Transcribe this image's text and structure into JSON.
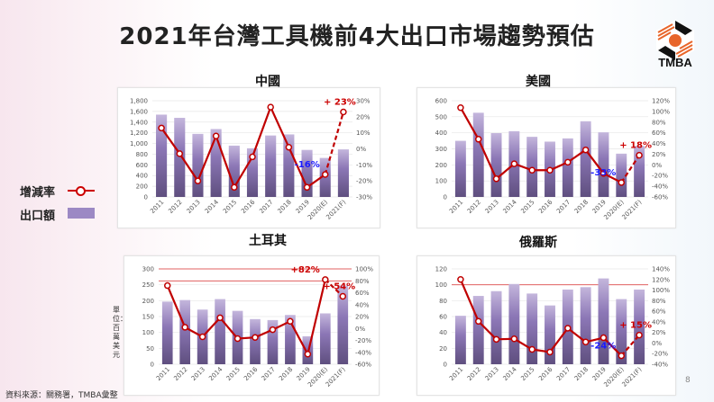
{
  "title": "2021年台灣工具機前4大出口市場趨勢預估",
  "logo_text": "TMBA",
  "legend": {
    "rate_label": "增減率",
    "export_label": "出口額",
    "line_color": "#cc0000",
    "bar_color": "#9c89c4"
  },
  "unit_label": "單位：百萬美元",
  "footer": "資料來源：關務署，TMBA彙整",
  "page_number": "8",
  "chart_data": [
    {
      "type": "bar+line",
      "title": "中國",
      "categories": [
        "2011",
        "2012",
        "2013",
        "2014",
        "2015",
        "2016",
        "2017",
        "2018",
        "2019",
        "2020(E)",
        "2021(F)"
      ],
      "series": [
        {
          "name": "出口額",
          "axis": "left",
          "values": [
            1540,
            1480,
            1180,
            1270,
            960,
            910,
            1150,
            1170,
            880,
            730,
            890
          ]
        },
        {
          "name": "增減率",
          "axis": "right",
          "values": [
            13,
            -3,
            -20,
            8,
            -24,
            -5,
            26,
            1,
            -24,
            -16,
            23
          ]
        }
      ],
      "ylim_left": [
        0,
        1800
      ],
      "ystep_left": 200,
      "ylim_right": [
        -30,
        30
      ],
      "ystep_right": 10,
      "reference_lines": [],
      "annotations": [
        {
          "index": 9,
          "text": "-16%",
          "color": "#1a1aff"
        },
        {
          "index": 10,
          "text": "+ 23%",
          "color": "#cc0000"
        }
      ]
    },
    {
      "type": "bar+line",
      "title": "美國",
      "categories": [
        "2011",
        "2012",
        "2013",
        "2014",
        "2015",
        "2016",
        "2017",
        "2018",
        "2019",
        "2020(E)",
        "2021(F)"
      ],
      "series": [
        {
          "name": "出口額",
          "axis": "left",
          "values": [
            350,
            525,
            398,
            410,
            375,
            345,
            365,
            472,
            403,
            270,
            318
          ]
        },
        {
          "name": "增減率",
          "axis": "right",
          "values": [
            107,
            48,
            -26,
            2,
            -10,
            -10,
            5,
            28,
            -16,
            -33,
            18
          ]
        }
      ],
      "ylim_left": [
        0,
        600
      ],
      "ystep_left": 100,
      "ylim_right": [
        -60,
        120
      ],
      "ystep_right": 20,
      "reference_lines": [],
      "annotations": [
        {
          "index": 9,
          "text": "-33%",
          "color": "#1a1aff"
        },
        {
          "index": 10,
          "text": "+ 18%",
          "color": "#cc0000"
        }
      ]
    },
    {
      "type": "bar+line",
      "title": "土耳其",
      "categories": [
        "2011",
        "2012",
        "2013",
        "2014",
        "2015",
        "2016",
        "2017",
        "2018",
        "2019",
        "2020(E)",
        "2021(F)"
      ],
      "series": [
        {
          "name": "出口額",
          "axis": "left",
          "values": [
            197,
            202,
            172,
            205,
            168,
            142,
            139,
            155,
            88,
            160,
            248
          ]
        },
        {
          "name": "增減率",
          "axis": "right",
          "values": [
            72,
            2,
            -14,
            18,
            -17,
            -15,
            -2,
            12,
            -43,
            82,
            54
          ]
        }
      ],
      "ylim_left": [
        0,
        300
      ],
      "ystep_left": 50,
      "ylim_right": [
        -60,
        100
      ],
      "ystep_right": 20,
      "reference_lines": [
        300,
        262
      ],
      "annotations": [
        {
          "index": 9,
          "text": "+82%",
          "color": "#cc0000"
        },
        {
          "index": 10,
          "text": "+ 54%",
          "color": "#cc0000"
        }
      ]
    },
    {
      "type": "bar+line",
      "title": "俄羅斯",
      "categories": [
        "2011",
        "2012",
        "2013",
        "2014",
        "2015",
        "2016",
        "2017",
        "2018",
        "2019",
        "2020(E)",
        "2021(F)"
      ],
      "series": [
        {
          "name": "出口額",
          "axis": "left",
          "values": [
            61,
            86,
            92,
            101,
            89,
            74,
            94,
            97,
            108,
            82,
            94
          ]
        },
        {
          "name": "增減率",
          "axis": "right",
          "values": [
            120,
            41,
            7,
            8,
            -12,
            -17,
            28,
            2,
            10,
            -24,
            15
          ]
        }
      ],
      "ylim_left": [
        0,
        120
      ],
      "ystep_left": 20,
      "ylim_right": [
        -40,
        140
      ],
      "ystep_right": 20,
      "reference_lines": [
        100
      ],
      "annotations": [
        {
          "index": 9,
          "text": "-24%",
          "color": "#1a1aff"
        },
        {
          "index": 10,
          "text": "+ 15%",
          "color": "#cc0000"
        }
      ]
    }
  ]
}
